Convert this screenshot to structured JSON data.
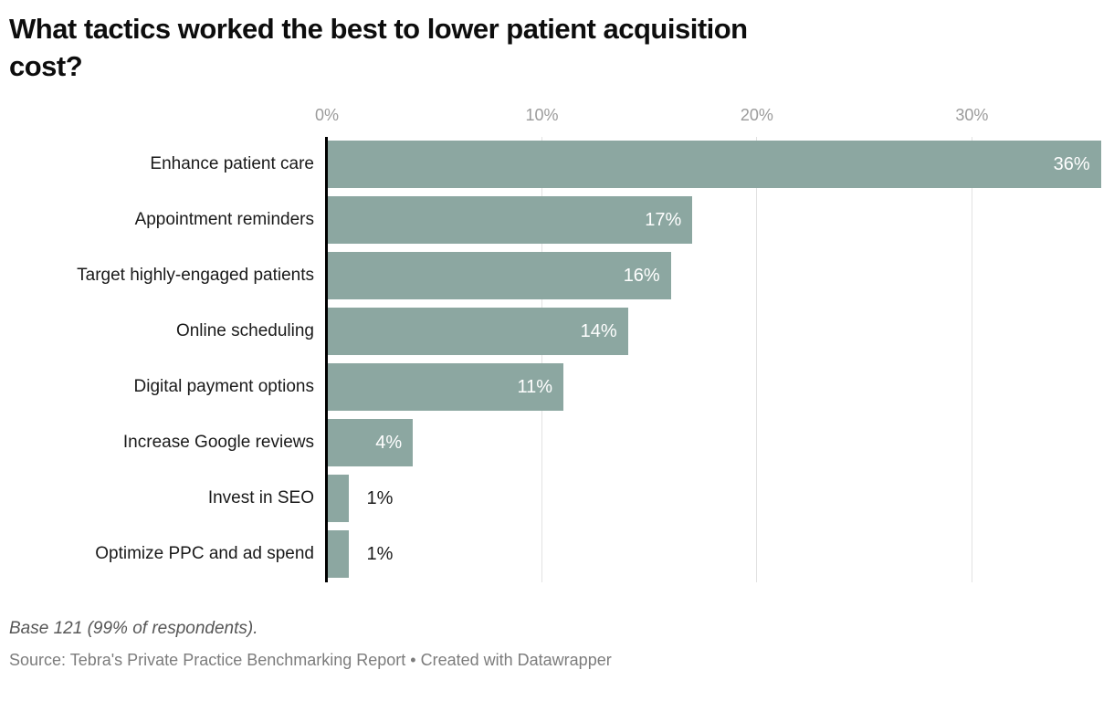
{
  "title": {
    "full": "What tactics worked the best to lower patient acquisition cost?",
    "line1": "What tactics worked the best to lower patient acquisition",
    "line2": "cost?"
  },
  "chart_data": {
    "type": "bar",
    "orientation": "horizontal",
    "title": "What tactics worked the best to lower patient acquisition cost?",
    "categories": [
      "Enhance patient care",
      "Appointment reminders",
      "Target highly-engaged patients",
      "Online scheduling",
      "Digital payment options",
      "Increase Google reviews",
      "Invest in SEO",
      "Optimize PPC and ad spend"
    ],
    "values": [
      36,
      17,
      16,
      14,
      11,
      4,
      1,
      1
    ],
    "value_labels": [
      "36%",
      "17%",
      "16%",
      "14%",
      "11%",
      "4%",
      "1%",
      "1%"
    ],
    "x_ticks": [
      "0%",
      "10%",
      "20%",
      "30%"
    ],
    "x_tick_values": [
      0,
      10,
      20,
      30
    ],
    "xlim": [
      0,
      36.1
    ],
    "grid": true,
    "legend": "none",
    "bar_color": "#8CA7A1",
    "inside_label_color": "#ffffff",
    "outside_label_color": "#1a1a1a",
    "gridline_color": "#e2e2e2",
    "axis_line_color": "#000000",
    "tick_label_color": "#9b9b9b"
  },
  "footer": {
    "note": "Base 121 (99% of respondents).",
    "source": "Source: Tebra's Private Practice Benchmarking Report • Created with Datawrapper"
  }
}
